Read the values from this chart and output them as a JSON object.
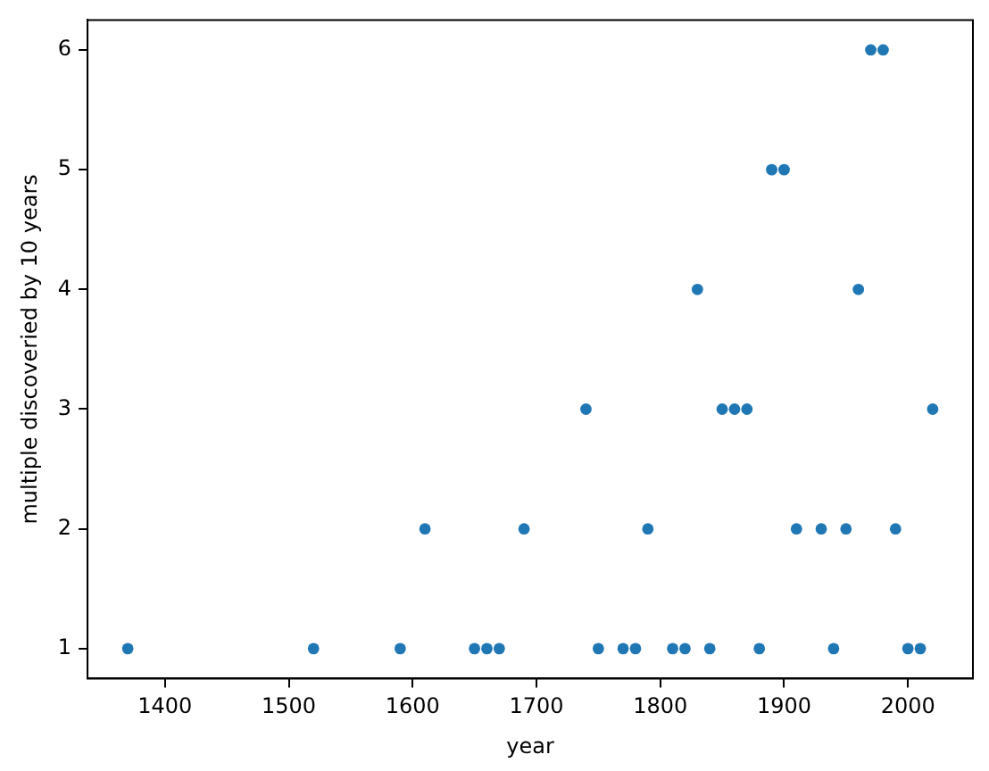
{
  "chart_data": {
    "type": "scatter",
    "xlabel": "year",
    "ylabel": "multiple discoveried by 10 years",
    "x": [
      1370,
      1520,
      1590,
      1650,
      1660,
      1670,
      1750,
      1770,
      1780,
      1810,
      1820,
      1840,
      1880,
      1940,
      2000,
      2010,
      1610,
      1690,
      1790,
      1910,
      1930,
      1950,
      1990,
      1740,
      1850,
      1860,
      1870,
      2020,
      1830,
      1960,
      1890,
      1900,
      1970,
      1980
    ],
    "series": [
      {
        "color": "#1f77b4",
        "values": [
          1,
          1,
          1,
          1,
          1,
          1,
          1,
          1,
          1,
          1,
          1,
          1,
          1,
          1,
          1,
          1,
          2,
          2,
          2,
          2,
          2,
          2,
          2,
          3,
          3,
          3,
          3,
          3,
          4,
          4,
          5,
          5,
          6,
          6
        ]
      }
    ],
    "xlim": [
      1337.5,
      2052.5
    ],
    "xticks": [
      1400,
      1500,
      1600,
      1700,
      1800,
      1900,
      2000
    ],
    "ylim": [
      0.75,
      6.25
    ],
    "yticks": [
      1,
      2,
      3,
      4,
      5,
      6
    ],
    "marker": "circle",
    "grid": false,
    "legend": false
  }
}
